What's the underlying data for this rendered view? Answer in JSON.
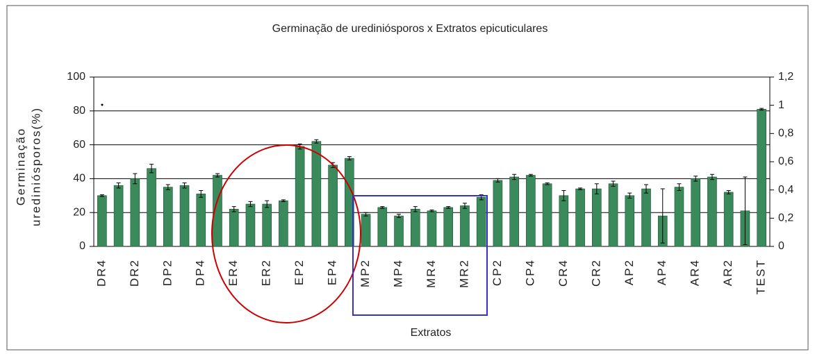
{
  "chart_data": {
    "type": "bar",
    "title": "Germinação de urediniósporos x Extratos epicuticulares",
    "y_label": [
      "Germinação",
      "urediniósporos(%)"
    ],
    "x_label": "Extratos",
    "categories": [
      "DR4",
      null,
      "DR2",
      null,
      "DP2",
      null,
      "DP4",
      null,
      "ER4",
      null,
      "ER2",
      null,
      "EP2",
      null,
      "EP4",
      null,
      "MP2",
      null,
      "MP4",
      null,
      "MR4",
      null,
      "MR2",
      null,
      "CP2",
      null,
      "CP4",
      null,
      "CR4",
      null,
      "CR2",
      null,
      "AP2",
      null,
      "AP4",
      null,
      "AR4",
      null,
      "AR2",
      null,
      "TEST"
    ],
    "values": [
      30,
      36,
      40,
      46,
      35,
      36,
      31,
      42,
      22,
      25,
      25,
      27,
      59,
      62,
      48,
      52,
      19,
      23,
      18,
      22,
      21,
      23,
      24,
      29,
      39,
      41,
      42,
      37,
      30,
      34,
      34,
      37,
      30,
      34,
      18,
      35,
      40,
      41,
      32,
      21,
      81
    ],
    "errors": [
      0.5,
      1.5,
      3,
      2.5,
      1.5,
      1.5,
      2,
      1,
      1.5,
      1.5,
      2,
      0.5,
      1.5,
      1,
      1.5,
      1,
      1,
      0.5,
      1,
      1.5,
      0.5,
      0.5,
      1.5,
      1.5,
      1,
      1.5,
      0.5,
      0.5,
      3,
      0.5,
      3,
      1.5,
      1.5,
      2.5,
      16,
      2,
      1.5,
      1.5,
      1,
      20,
      0.5
    ],
    "color": "#3b8a5c",
    "ylim": [
      0,
      100
    ],
    "yticks": [
      0,
      20,
      40,
      60,
      80,
      100
    ],
    "y2lim": [
      0,
      1.2
    ],
    "y2ticks": [
      0,
      {
        "value": 0.2,
        "label": "0,2"
      },
      {
        "value": 0.4,
        "label": "0,4"
      },
      {
        "value": 0.6,
        "label": "0,6"
      },
      {
        "value": 0.8,
        "label": "0,8"
      },
      1,
      {
        "value": 1.2,
        "label": "1,2"
      }
    ],
    "grid": true
  }
}
